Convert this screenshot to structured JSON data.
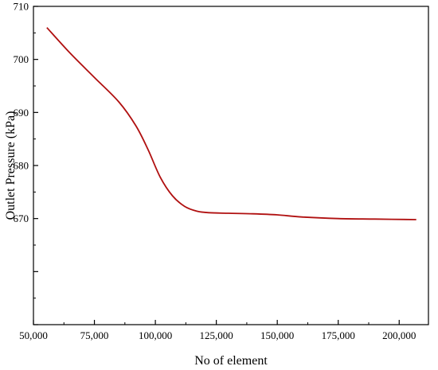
{
  "chart_data": {
    "type": "line",
    "xlabel": "No of element",
    "ylabel": "Outlet Pressure (kPa)",
    "xlim": [
      50000,
      212000
    ],
    "ylim": [
      650,
      710
    ],
    "x_ticks": [
      50000,
      75000,
      100000,
      125000,
      150000,
      175000,
      200000
    ],
    "x_tick_labels": [
      "50,000",
      "75,000",
      "100,000",
      "125,000",
      "150,000",
      "175,000",
      "200,000"
    ],
    "y_ticks": [
      670,
      680,
      690,
      700,
      710
    ],
    "y_tick_labels": [
      "670",
      "680",
      "690",
      "700",
      "710"
    ],
    "grid": false,
    "series": [
      {
        "color": "#b01010",
        "x": [
          55500,
          65000,
          75000,
          85000,
          92000,
          97000,
          102000,
          107000,
          112000,
          117000,
          122000,
          130000,
          140000,
          150000,
          160000,
          175000,
          190000,
          207000
        ],
        "y": [
          706.0,
          701.2,
          696.6,
          692.0,
          687.5,
          683.0,
          677.8,
          674.3,
          672.3,
          671.4,
          671.1,
          671.0,
          670.9,
          670.7,
          670.3,
          670.0,
          669.9,
          669.8
        ]
      }
    ]
  }
}
